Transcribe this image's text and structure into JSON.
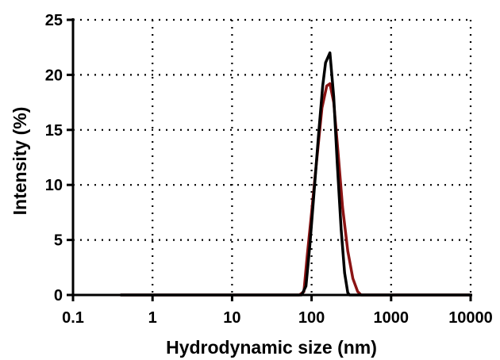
{
  "chart_data": {
    "type": "line",
    "xlabel": "Hydrodynamic size (nm)",
    "ylabel": "Intensity (%)",
    "x_scale": "log",
    "xlim": [
      0.1,
      10000
    ],
    "ylim": [
      0,
      25
    ],
    "x_ticks": [
      0.1,
      1,
      10,
      100,
      1000,
      10000
    ],
    "x_tick_labels": [
      "0.1",
      "1",
      "10",
      "100",
      "1000",
      "10000"
    ],
    "y_ticks": [
      0,
      5,
      10,
      15,
      20,
      25
    ],
    "y_tick_labels": [
      "0",
      "5",
      "10",
      "15",
      "20",
      "25"
    ],
    "grid": "dotted",
    "series": [
      {
        "color": "#8b1414",
        "points": [
          [
            0.4,
            0
          ],
          [
            70,
            0
          ],
          [
            80,
            0.3
          ],
          [
            88,
            3.5
          ],
          [
            100,
            7.5
          ],
          [
            115,
            12
          ],
          [
            135,
            17
          ],
          [
            155,
            19
          ],
          [
            170,
            19.2
          ],
          [
            190,
            17.5
          ],
          [
            215,
            13
          ],
          [
            245,
            8
          ],
          [
            285,
            4
          ],
          [
            330,
            1.5
          ],
          [
            380,
            0.3
          ],
          [
            420,
            0
          ],
          [
            10000,
            0
          ]
        ]
      },
      {
        "color": "#000000",
        "points": [
          [
            0.4,
            0
          ],
          [
            75,
            0
          ],
          [
            85,
            0.8
          ],
          [
            95,
            4.5
          ],
          [
            108,
            9.5
          ],
          [
            122,
            14.5
          ],
          [
            138,
            19
          ],
          [
            150,
            21.1
          ],
          [
            170,
            22
          ],
          [
            190,
            18
          ],
          [
            210,
            12
          ],
          [
            235,
            6
          ],
          [
            260,
            2
          ],
          [
            285,
            0.2
          ],
          [
            300,
            0
          ],
          [
            10000,
            0
          ]
        ]
      }
    ]
  }
}
